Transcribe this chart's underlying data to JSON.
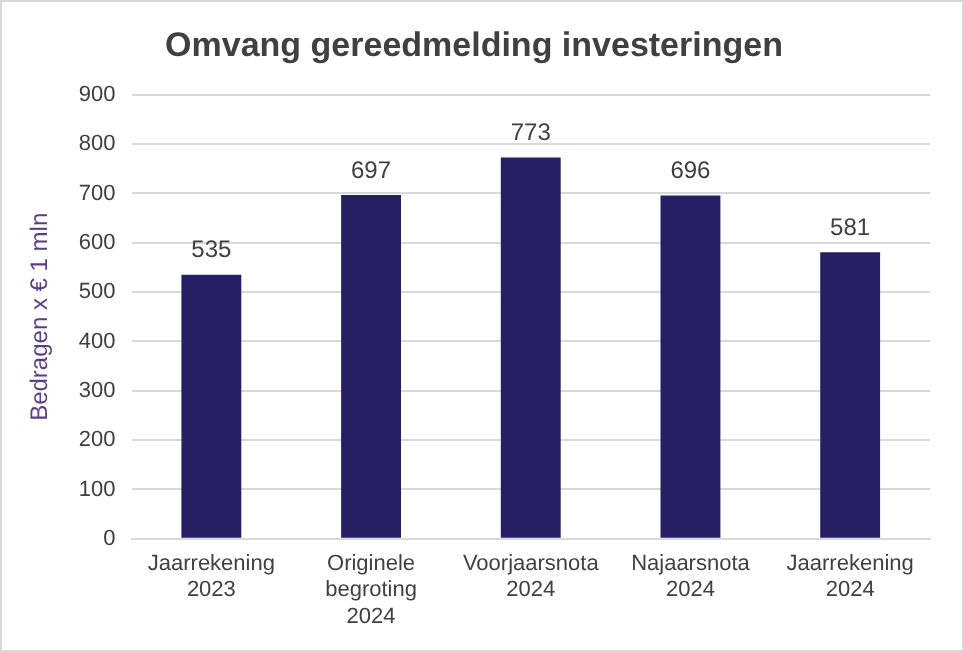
{
  "chart_data": {
    "type": "bar",
    "title": "Omvang gereedmelding investeringen",
    "ylabel": "Bedragen x € 1 mln",
    "categories": [
      "Jaarrekening 2023",
      "Originele begroting 2024",
      "Voorjaarsnota 2024",
      "Najaarsnota 2024",
      "Jaarrekening 2024"
    ],
    "values": [
      535,
      697,
      773,
      696,
      581
    ],
    "color": "#271e63",
    "ylim": [
      0,
      900
    ],
    "yticks": [
      0,
      100,
      200,
      300,
      400,
      500,
      600,
      700,
      800,
      900
    ],
    "grid": "y",
    "data_labels": true,
    "legend": false
  }
}
